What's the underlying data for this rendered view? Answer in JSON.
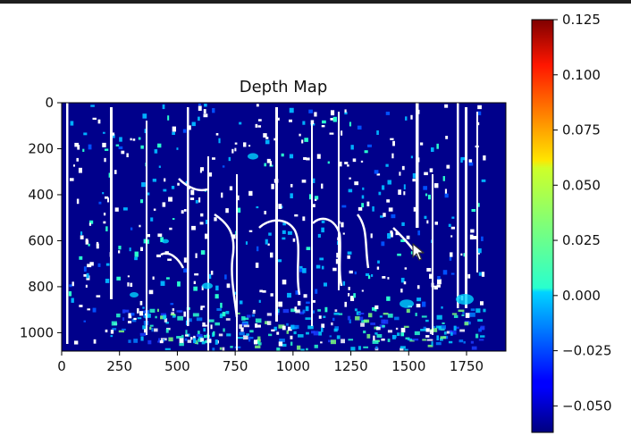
{
  "chart_data": {
    "type": "heatmap",
    "title": "Depth Map",
    "xlabel": "",
    "ylabel": "",
    "xlim": [
      0,
      1920
    ],
    "ylim": [
      1080,
      0
    ],
    "x_ticks": [
      "0",
      "250",
      "500",
      "750",
      "1000",
      "1250",
      "1500",
      "1750"
    ],
    "x_tick_values": [
      0,
      250,
      500,
      750,
      1000,
      1250,
      1500,
      1750
    ],
    "y_ticks": [
      "0",
      "200",
      "400",
      "600",
      "800",
      "1000"
    ],
    "y_tick_values": [
      0,
      200,
      400,
      600,
      800,
      1000
    ],
    "colormap": "jet",
    "colorbar": {
      "range": [
        -0.062,
        0.125
      ],
      "ticks": [
        "0.125",
        "0.100",
        "0.075",
        "0.050",
        "0.025",
        "0.000",
        "−0.025",
        "−0.050"
      ],
      "tick_values": [
        0.125,
        0.1,
        0.075,
        0.05,
        0.025,
        0.0,
        -0.025,
        -0.05
      ]
    },
    "background_color": "#00008b",
    "highlight_color": "#ffffff"
  }
}
